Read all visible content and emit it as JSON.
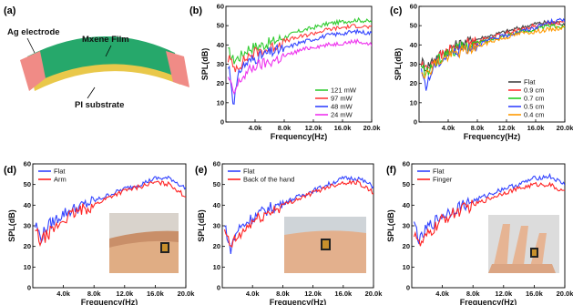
{
  "panel_letters": [
    "(a)",
    "(b)",
    "(c)",
    "(d)",
    "(e)",
    "(f)"
  ],
  "device": {
    "electrode_label": "Ag electrode",
    "film_label": "Mxene Film",
    "substrate_label": "PI substrate"
  },
  "insets": {
    "d": "photo of the speaker attached to an arm",
    "e": "photo of the speaker attached to the back of the hand",
    "f": "photo of the speaker attached to a finger"
  },
  "chart_data": [
    {
      "panel": "b",
      "type": "line",
      "xlabel": "Frequency(Hz)",
      "ylabel": "SPL(dB)",
      "xlim": [
        0,
        20000
      ],
      "ylim": [
        0,
        60
      ],
      "xticks": [
        4000,
        8000,
        12000,
        16000,
        20000
      ],
      "xtick_labels": [
        "4.0k",
        "8.0k",
        "12.0k",
        "16.0k",
        "20.0k"
      ],
      "yticks": [
        0,
        10,
        20,
        30,
        40,
        50,
        60
      ],
      "ytick_labels": [
        "0",
        "10",
        "20",
        "30",
        "40",
        "50",
        "60"
      ],
      "legend_position": "bottom-right",
      "x": [
        500,
        1000,
        2000,
        3000,
        4000,
        6000,
        8000,
        10000,
        12000,
        14000,
        16000,
        18000,
        20000
      ],
      "series": [
        {
          "name": "121 mW",
          "color": "#33cc33",
          "values": [
            36,
            32,
            34,
            38,
            39,
            41,
            44,
            47,
            49,
            51,
            52,
            53,
            52
          ]
        },
        {
          "name": "97 mW",
          "color": "#ff3b3b",
          "values": [
            33,
            28,
            30,
            34,
            36,
            38,
            42,
            44,
            46,
            48,
            49,
            50,
            49
          ]
        },
        {
          "name": "48 mW",
          "color": "#3344ff",
          "values": [
            28,
            10,
            28,
            31,
            33,
            36,
            38,
            41,
            43,
            45,
            46,
            47,
            46
          ]
        },
        {
          "name": "24 mW",
          "color": "#ee33ee",
          "values": [
            22,
            14,
            22,
            26,
            29,
            31,
            34,
            37,
            39,
            40,
            41,
            42,
            40
          ]
        }
      ]
    },
    {
      "panel": "c",
      "type": "line",
      "xlabel": "Frequency(Hz)",
      "ylabel": "SPL(dB)",
      "xlim": [
        0,
        20000
      ],
      "ylim": [
        0,
        60
      ],
      "xticks": [
        4000,
        8000,
        12000,
        16000,
        20000
      ],
      "xtick_labels": [
        "4.0k",
        "8.0k",
        "12.0k",
        "16.0k",
        "20.0k"
      ],
      "yticks": [
        0,
        10,
        20,
        30,
        40,
        50,
        60
      ],
      "ytick_labels": [
        "0",
        "10",
        "20",
        "30",
        "40",
        "50",
        "60"
      ],
      "legend_position": "bottom-right",
      "x": [
        500,
        1000,
        2000,
        3000,
        4000,
        6000,
        8000,
        10000,
        12000,
        14000,
        16000,
        18000,
        20000
      ],
      "series": [
        {
          "name": "Flat",
          "color": "#444444",
          "values": [
            31,
            28,
            33,
            35,
            38,
            41,
            43,
            45,
            47,
            49,
            51,
            52,
            51
          ]
        },
        {
          "name": "0.9 cm",
          "color": "#ff3333",
          "values": [
            30,
            27,
            32,
            34,
            37,
            40,
            42,
            44,
            46,
            48,
            50,
            51,
            52
          ]
        },
        {
          "name": "0.7 cm",
          "color": "#22cc22",
          "values": [
            28,
            25,
            30,
            33,
            36,
            39,
            41,
            43,
            45,
            47,
            48,
            50,
            49
          ]
        },
        {
          "name": "0.5 cm",
          "color": "#3344ff",
          "values": [
            25,
            18,
            29,
            32,
            35,
            38,
            40,
            43,
            45,
            47,
            49,
            52,
            53
          ]
        },
        {
          "name": "0.4 cm",
          "color": "#ff9900",
          "values": [
            27,
            24,
            30,
            32,
            34,
            37,
            39,
            42,
            44,
            46,
            47,
            48,
            49
          ]
        }
      ]
    },
    {
      "panel": "d",
      "type": "line",
      "xlabel": "Frequency(Hz)",
      "ylabel": "SPL(dB)",
      "xlim": [
        0,
        20000
      ],
      "ylim": [
        0,
        60
      ],
      "xticks": [
        4000,
        8000,
        12000,
        16000,
        20000
      ],
      "xtick_labels": [
        "4.0k",
        "8.0k",
        "12.0k",
        "16.0k",
        "20.0k"
      ],
      "yticks": [
        0,
        10,
        20,
        30,
        40,
        50,
        60
      ],
      "ytick_labels": [
        "0",
        "10",
        "20",
        "30",
        "40",
        "50",
        "60"
      ],
      "legend_position": "top-left",
      "x": [
        500,
        1000,
        2000,
        3000,
        4000,
        6000,
        8000,
        10000,
        12000,
        14000,
        16000,
        18000,
        20000
      ],
      "series": [
        {
          "name": "Flat",
          "color": "#3344ff",
          "values": [
            30,
            24,
            30,
            33,
            36,
            39,
            42,
            45,
            48,
            50,
            53,
            53,
            48
          ]
        },
        {
          "name": "Arm",
          "color": "#ff2222",
          "values": [
            27,
            22,
            26,
            29,
            33,
            37,
            40,
            44,
            47,
            49,
            51,
            50,
            44
          ]
        }
      ]
    },
    {
      "panel": "e",
      "type": "line",
      "xlabel": "Frequency(Hz)",
      "ylabel": "SPL(dB)",
      "xlim": [
        0,
        20000
      ],
      "ylim": [
        0,
        60
      ],
      "xticks": [
        4000,
        8000,
        12000,
        16000,
        20000
      ],
      "xtick_labels": [
        "4.0k",
        "8.0k",
        "12.0k",
        "16.0k",
        "20.0k"
      ],
      "yticks": [
        0,
        10,
        20,
        30,
        40,
        50,
        60
      ],
      "ytick_labels": [
        "0",
        "10",
        "20",
        "30",
        "40",
        "50",
        "60"
      ],
      "legend_position": "top-left",
      "x": [
        500,
        1000,
        2000,
        3000,
        4000,
        6000,
        8000,
        10000,
        12000,
        14000,
        16000,
        18000,
        20000
      ],
      "series": [
        {
          "name": "Flat",
          "color": "#3344ff",
          "values": [
            29,
            18,
            28,
            31,
            34,
            38,
            41,
            44,
            47,
            50,
            53,
            53,
            49
          ]
        },
        {
          "name": "Back of the hand",
          "color": "#ff2222",
          "values": [
            26,
            20,
            24,
            28,
            32,
            36,
            40,
            43,
            46,
            49,
            51,
            51,
            46
          ]
        }
      ]
    },
    {
      "panel": "f",
      "type": "line",
      "xlabel": "Frequency(Hz)",
      "ylabel": "SPL(dB)",
      "xlim": [
        0,
        20000
      ],
      "ylim": [
        0,
        60
      ],
      "xticks": [
        4000,
        8000,
        12000,
        16000,
        20000
      ],
      "xtick_labels": [
        "4.0k",
        "8.0k",
        "12.0k",
        "16.0k",
        "20.0k"
      ],
      "yticks": [
        0,
        10,
        20,
        30,
        40,
        50,
        60
      ],
      "ytick_labels": [
        "0",
        "10",
        "20",
        "30",
        "40",
        "50",
        "60"
      ],
      "legend_position": "top-left",
      "x": [
        500,
        1000,
        2000,
        3000,
        4000,
        6000,
        8000,
        10000,
        12000,
        14000,
        16000,
        18000,
        20000
      ],
      "series": [
        {
          "name": "Flat",
          "color": "#3344ff",
          "values": [
            30,
            22,
            29,
            32,
            35,
            39,
            42,
            45,
            48,
            50,
            53,
            54,
            50
          ]
        },
        {
          "name": "Finger",
          "color": "#ff2222",
          "values": [
            27,
            20,
            25,
            29,
            33,
            37,
            40,
            43,
            46,
            48,
            50,
            50,
            46
          ]
        }
      ]
    }
  ]
}
